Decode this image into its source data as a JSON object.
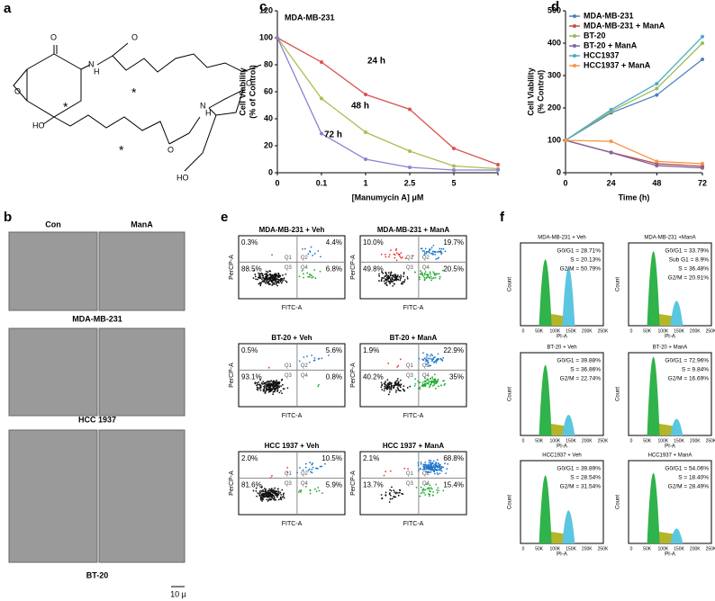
{
  "panel_labels": [
    "a",
    "b",
    "c",
    "d",
    "e",
    "f"
  ],
  "structure": {
    "atoms": [
      "O",
      "O",
      "N",
      "H",
      "O",
      "HO",
      "N",
      "H",
      "O",
      "O",
      "HO"
    ],
    "stars": [
      "*",
      "*",
      "*"
    ]
  },
  "micrographs": {
    "columns": [
      "Con",
      "ManA"
    ],
    "rows": [
      "MDA-MB-231",
      "HCC 1937",
      "BT-20"
    ],
    "scale_bar": "10 μ"
  },
  "chart_data": [
    {
      "type": "line",
      "title": "MDA-MB-231",
      "categories": [
        "0",
        "0.1",
        "1",
        "2.5",
        "5",
        null
      ],
      "x_label": "[Manumycin A] μM",
      "y_label": [
        "Cell Viability",
        "(% of Control)"
      ],
      "ylim": [
        0,
        120
      ],
      "yticks": [
        0,
        20,
        40,
        60,
        80,
        100,
        120
      ],
      "series": [
        {
          "name": "24 h",
          "color": "#d9534f",
          "values": [
            100,
            82,
            58,
            47,
            18,
            6
          ]
        },
        {
          "name": "48 h",
          "color": "#a5c152",
          "values": [
            100,
            55,
            30,
            16,
            5,
            3
          ]
        },
        {
          "name": "72 h",
          "color": "#8f7fd0",
          "values": [
            100,
            29,
            10,
            4,
            2,
            2
          ]
        }
      ]
    },
    {
      "type": "line",
      "x": [
        0,
        24,
        48,
        72
      ],
      "xlim": [
        0,
        72
      ],
      "xticks": [
        0,
        24,
        48,
        72
      ],
      "x_label": "Time (h)",
      "y_label": [
        "Cell Viability",
        "(% Control)"
      ],
      "ylim": [
        0,
        500
      ],
      "yticks": [
        0,
        100,
        200,
        300,
        400,
        500
      ],
      "legend": "upper left",
      "series": [
        {
          "name": "MDA-MB-231",
          "color": "#4f81bd",
          "values": [
            100,
            185,
            240,
            350
          ]
        },
        {
          "name": "MDA-MB-231 + ManA",
          "color": "#c0504d",
          "values": [
            100,
            63,
            28,
            20
          ]
        },
        {
          "name": "BT-20",
          "color": "#9bbb59",
          "values": [
            100,
            190,
            260,
            400
          ]
        },
        {
          "name": "BT-20 + ManA",
          "color": "#8064a2",
          "values": [
            100,
            62,
            22,
            15
          ]
        },
        {
          "name": "HCC1937",
          "color": "#4bacc6",
          "values": [
            100,
            195,
            275,
            420
          ]
        },
        {
          "name": "HCC1937 + ManA",
          "color": "#f79646",
          "values": [
            100,
            97,
            35,
            28
          ]
        }
      ]
    }
  ],
  "flow": {
    "x_label": "FITC-A",
    "y_label": "PerCP-A",
    "quadrants": [
      "Q1",
      "Q2",
      "Q3",
      "Q4"
    ],
    "plots": [
      {
        "title": "MDA-MB-231 + Veh",
        "percents": [
          "0.3%",
          "4.4%",
          "88.5%",
          "6.8%"
        ]
      },
      {
        "title": "MDA-MB-231 + ManA",
        "percents": [
          "10.0%",
          "19.7%",
          "49.8%",
          "20.5%"
        ]
      },
      {
        "title": "BT-20 + Veh",
        "percents": [
          "0.5%",
          "5.6%",
          "93.1%",
          "0.8%"
        ]
      },
      {
        "title": "BT-20 + ManA",
        "percents": [
          "1.9%",
          "22.9%",
          "40.2%",
          "35%"
        ]
      },
      {
        "title": "HCC 1937 + Veh",
        "percents": [
          "2.0%",
          "10.5%",
          "81.6%",
          "5.9%"
        ]
      },
      {
        "title": "HCC 1937 + ManA",
        "percents": [
          "2.1%",
          "68.8%",
          "13.7%",
          "15.4%"
        ]
      }
    ]
  },
  "cell_cycle": {
    "x_label": "PI-A",
    "y_label": "Count",
    "x_ticks": [
      "0",
      "50K",
      "100K",
      "150K",
      "200K",
      "250K"
    ],
    "plots": [
      {
        "title": "MDA-MB-231 + Veh",
        "stats": [
          "G0/G1 = 28.71%",
          "S = 20.13%",
          "G2/M = 50.79%"
        ]
      },
      {
        "title": "MDA-MB-231 +ManA",
        "stats": [
          "G0/G1 = 33.79%",
          "Sub G1 = 8.9%",
          "S = 36.48%",
          "G2/M = 20.91%"
        ]
      },
      {
        "title": "BT-20 + Veh",
        "stats": [
          "G0/G1 = 39.88%",
          "S = 36.86%",
          "G2/M = 22.74%"
        ]
      },
      {
        "title": "BT-20 + ManA",
        "stats": [
          "G0/G1 = 72.96%",
          "S = 9.84%",
          "G2/M = 16.69%"
        ]
      },
      {
        "title": "HCC1937 + Veh",
        "stats": [
          "G0/G1 = 39.89%",
          "S = 28.54%",
          "G2/M = 31.54%"
        ]
      },
      {
        "title": "HCC1937 + ManA",
        "stats": [
          "G0/G1 = 54.06%",
          "S = 18.40%",
          "G2/M = 28.49%"
        ]
      }
    ]
  }
}
